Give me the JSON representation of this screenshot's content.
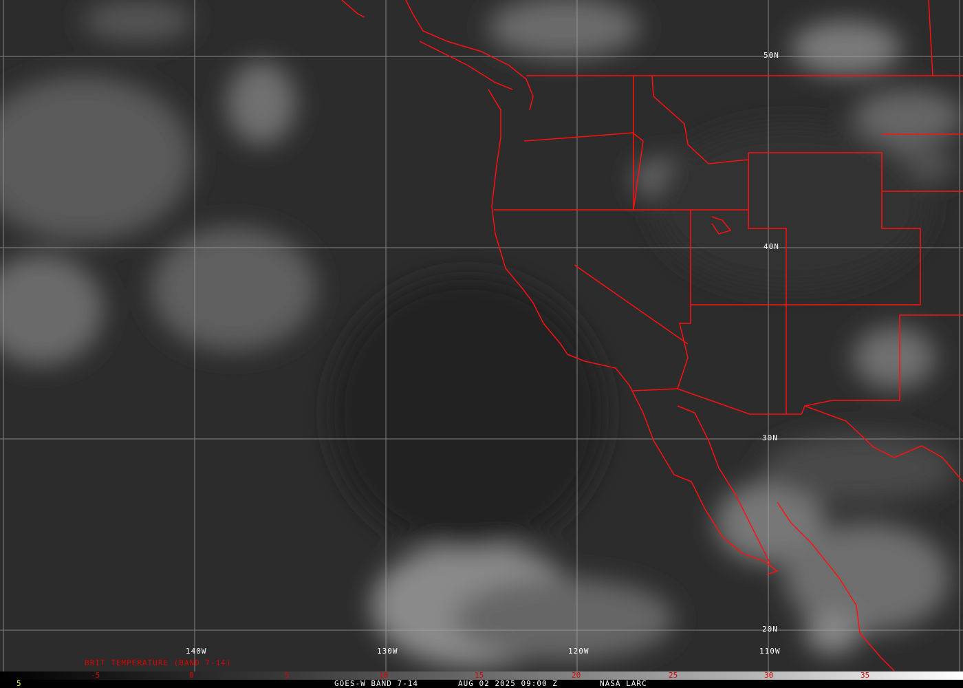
{
  "map": {
    "satellite": "GOES-W",
    "land_border_color": "#ff0000",
    "grid_color": "#a0a0a0",
    "latitude_labels": [
      "50N",
      "40N",
      "30N",
      "20N"
    ],
    "longitude_labels": [
      "140W",
      "130W",
      "120W",
      "110W"
    ]
  },
  "colorbar": {
    "title": "BRIT TEMPERATURE (BAND 7-14)",
    "ticks": [
      "-5",
      "0",
      "5",
      "10",
      "15",
      "20",
      "25",
      "30",
      "35"
    ],
    "corner_value": "5"
  },
  "footer": {
    "product": "GOES-W BAND 7-14",
    "datetime": "AUG 02 2025 09:00 Z",
    "credit": "NASA LARC"
  }
}
